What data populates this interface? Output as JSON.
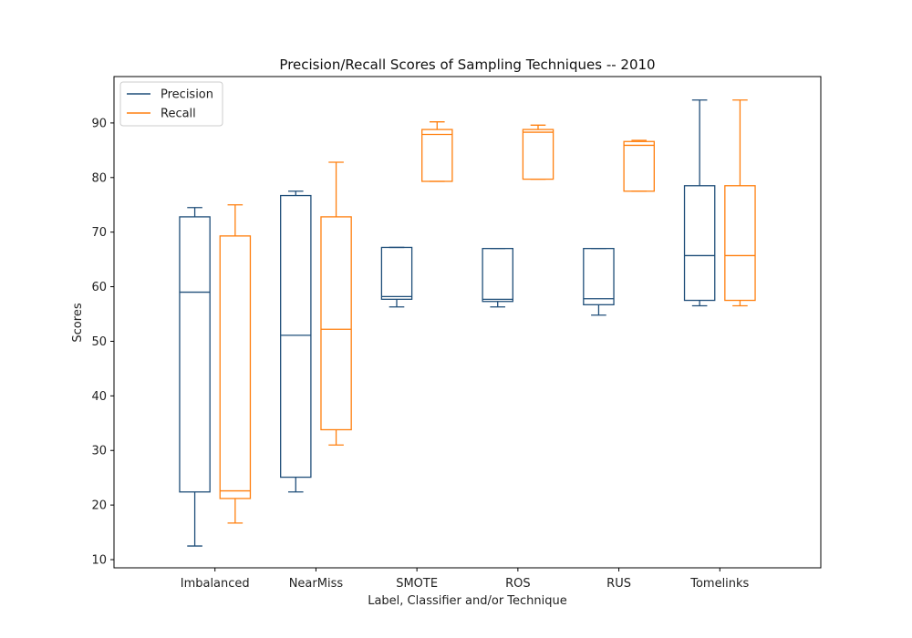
{
  "chart_data": {
    "type": "box",
    "title": "Precision/Recall Scores of Sampling Techniques -- 2010",
    "xlabel": "Label, Classifier and/or Technique",
    "ylabel": "Scores",
    "ylim": [
      8.5,
      98.5
    ],
    "yticks": [
      10,
      20,
      30,
      40,
      50,
      60,
      70,
      80,
      90
    ],
    "grid": false,
    "legend_position": "top-left",
    "categories": [
      "Imbalanced",
      "NearMiss",
      "SMOTE",
      "ROS",
      "RUS",
      "Tomelinks"
    ],
    "series": [
      {
        "name": "Precision",
        "color": "#1f4e79",
        "boxes": [
          {
            "whislo": 12.5,
            "q1": 22.4,
            "med": 59.0,
            "q3": 72.8,
            "whishi": 74.5
          },
          {
            "whislo": 22.4,
            "q1": 25.1,
            "med": 51.1,
            "q3": 76.7,
            "whishi": 77.5
          },
          {
            "whislo": 56.3,
            "q1": 57.7,
            "med": 58.2,
            "q3": 67.2,
            "whishi": 67.2
          },
          {
            "whislo": 56.3,
            "q1": 57.3,
            "med": 57.7,
            "q3": 67.0,
            "whishi": 67.0
          },
          {
            "whislo": 54.8,
            "q1": 56.7,
            "med": 57.8,
            "q3": 67.0,
            "whishi": 67.0
          },
          {
            "whislo": 56.5,
            "q1": 57.5,
            "med": 65.7,
            "q3": 78.5,
            "whishi": 94.2
          }
        ]
      },
      {
        "name": "Recall",
        "color": "#ff7f0e",
        "boxes": [
          {
            "whislo": 16.7,
            "q1": 21.2,
            "med": 22.6,
            "q3": 69.3,
            "whishi": 75.0
          },
          {
            "whislo": 31.0,
            "q1": 33.8,
            "med": 52.2,
            "q3": 72.8,
            "whishi": 82.8
          },
          {
            "whislo": 79.3,
            "q1": 79.3,
            "med": 87.9,
            "q3": 88.8,
            "whishi": 90.2
          },
          {
            "whislo": 79.7,
            "q1": 79.7,
            "med": 88.3,
            "q3": 88.8,
            "whishi": 89.6
          },
          {
            "whislo": 77.5,
            "q1": 77.5,
            "med": 85.9,
            "q3": 86.6,
            "whishi": 86.8
          },
          {
            "whislo": 56.5,
            "q1": 57.5,
            "med": 65.7,
            "q3": 78.5,
            "whishi": 94.2
          }
        ]
      }
    ]
  }
}
